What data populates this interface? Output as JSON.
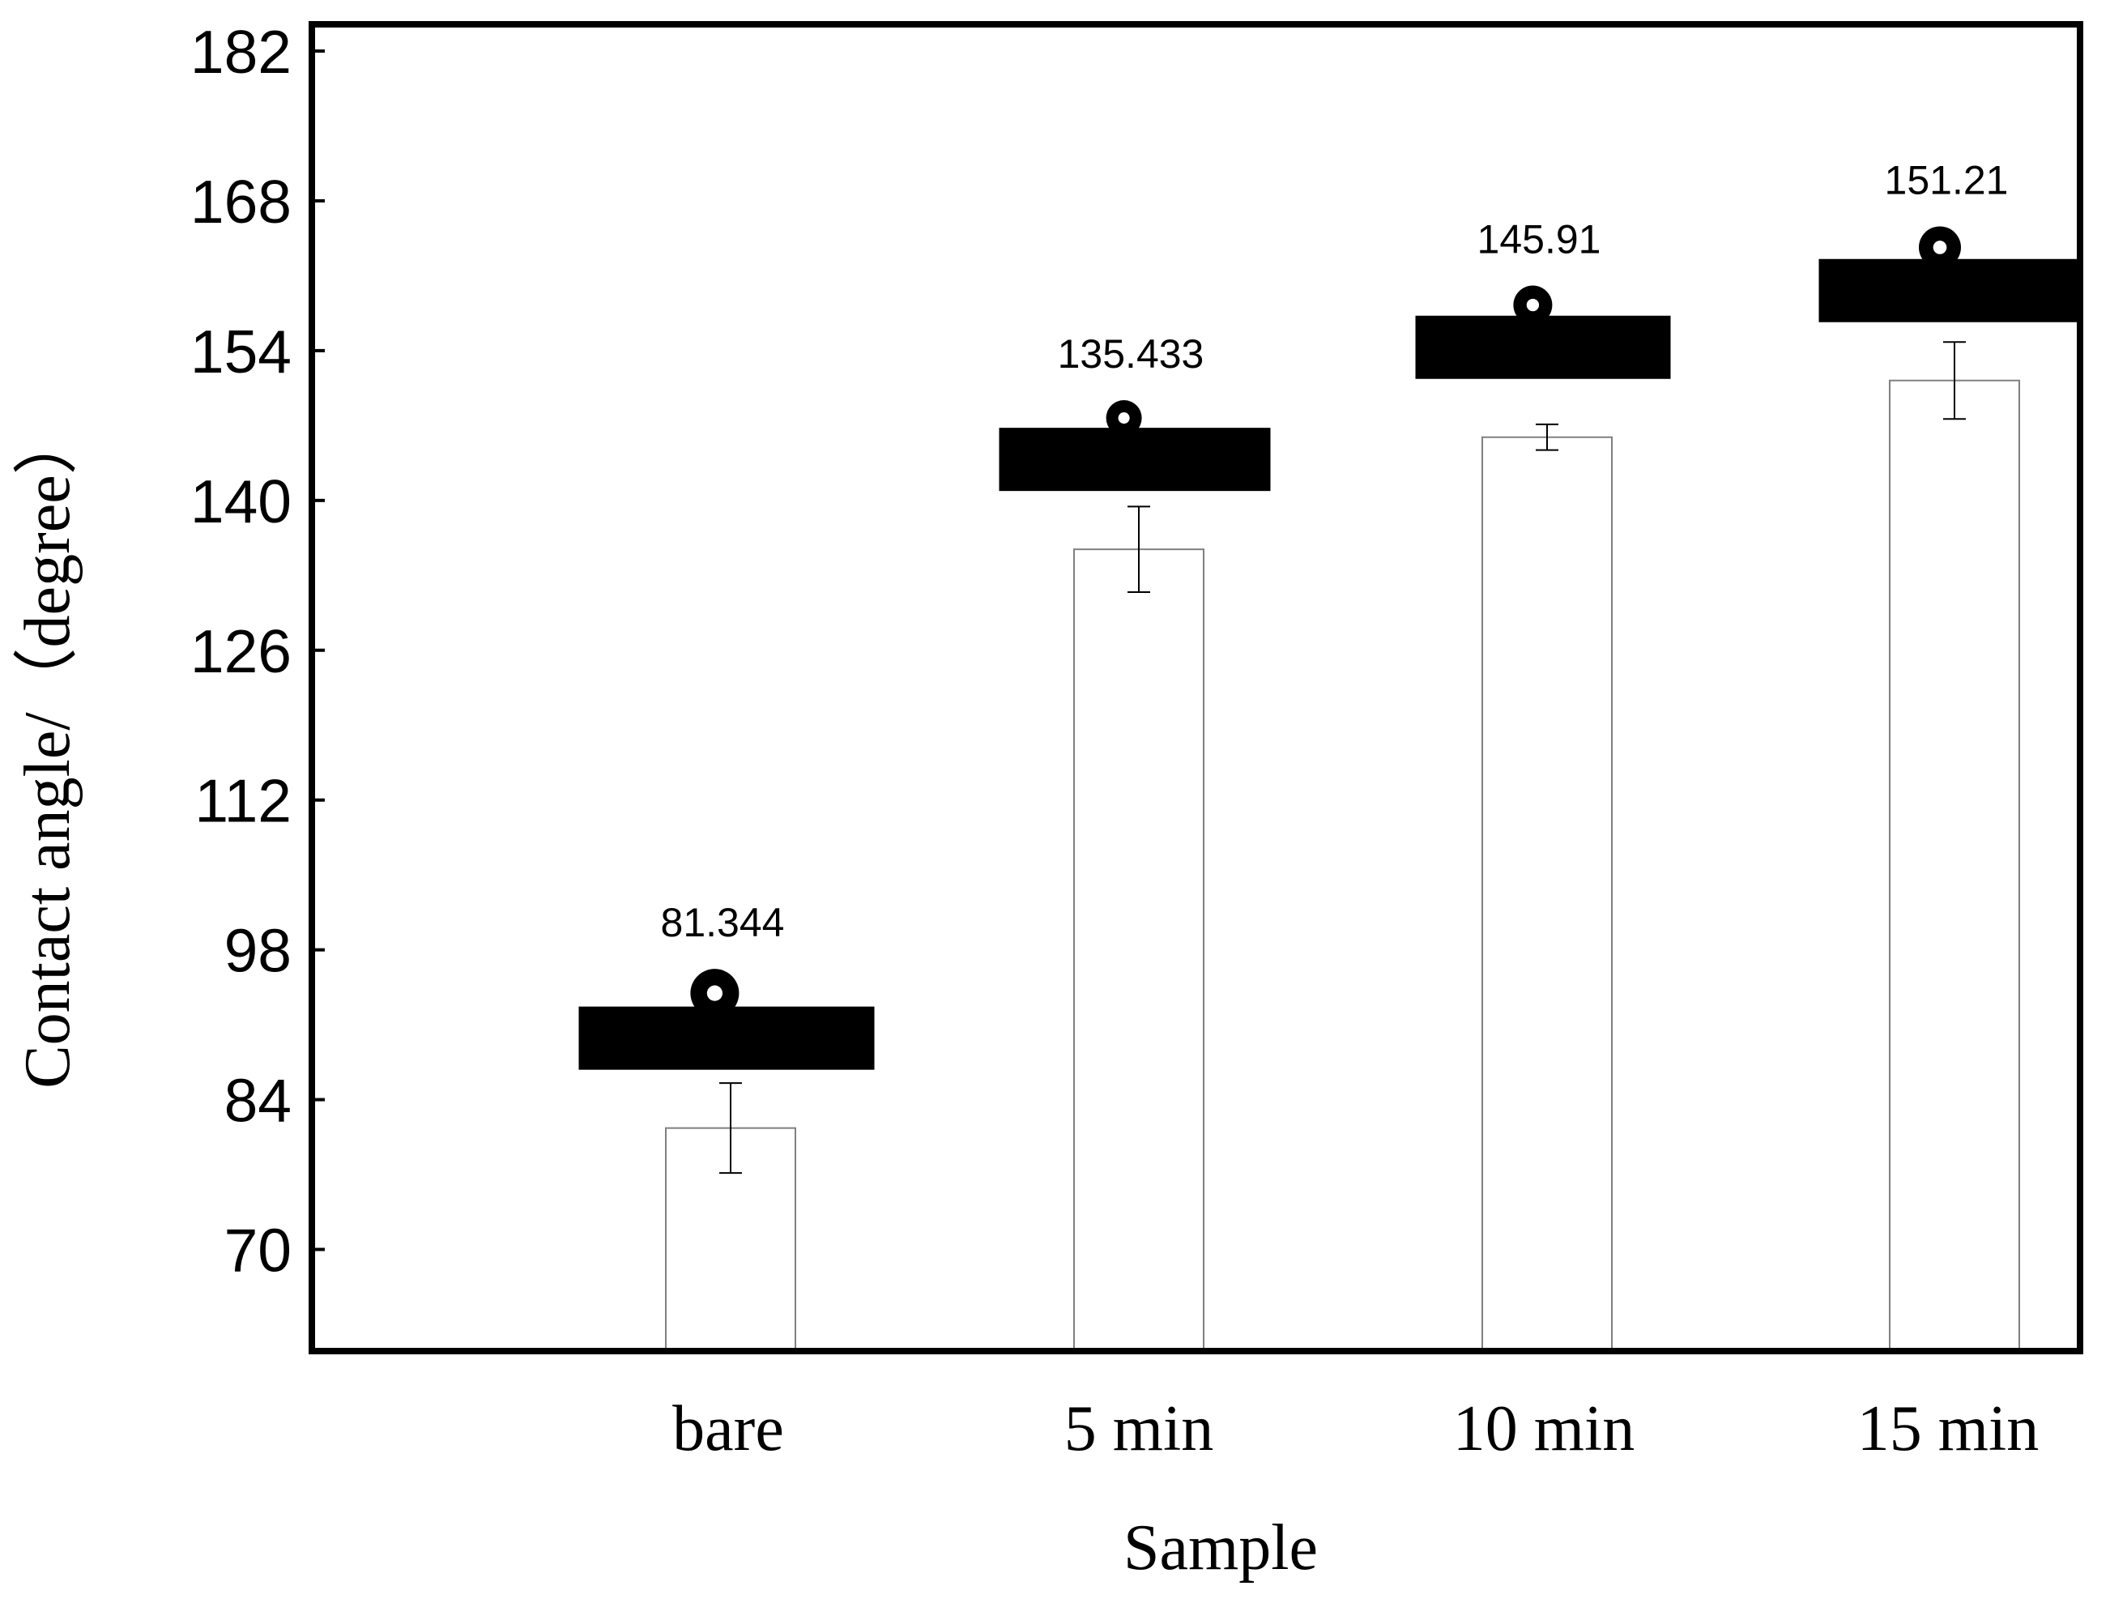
{
  "chart_data": {
    "type": "bar",
    "title": "",
    "xlabel": "Sample",
    "ylabel": "Contact angle/（degree）",
    "categories": [
      "bare",
      "5 min",
      "10 min",
      "15 min"
    ],
    "values": [
      81.344,
      135.433,
      145.91,
      151.21
    ],
    "data_labels": [
      "81.344",
      "135.433",
      "145.91",
      "151.21"
    ],
    "error": [
      4.2,
      4.0,
      1.2,
      3.6
    ],
    "ylim": [
      60.5,
      184.5
    ],
    "yticks": [
      70,
      84,
      98,
      112,
      126,
      140,
      154,
      168,
      182
    ],
    "inset_images": "water droplet contact-angle photos above each bar",
    "grid": false,
    "legend": "none",
    "colors": {
      "bar_fill": "#ffffff",
      "bar_edge": "#808080",
      "axis": "#000000"
    }
  }
}
